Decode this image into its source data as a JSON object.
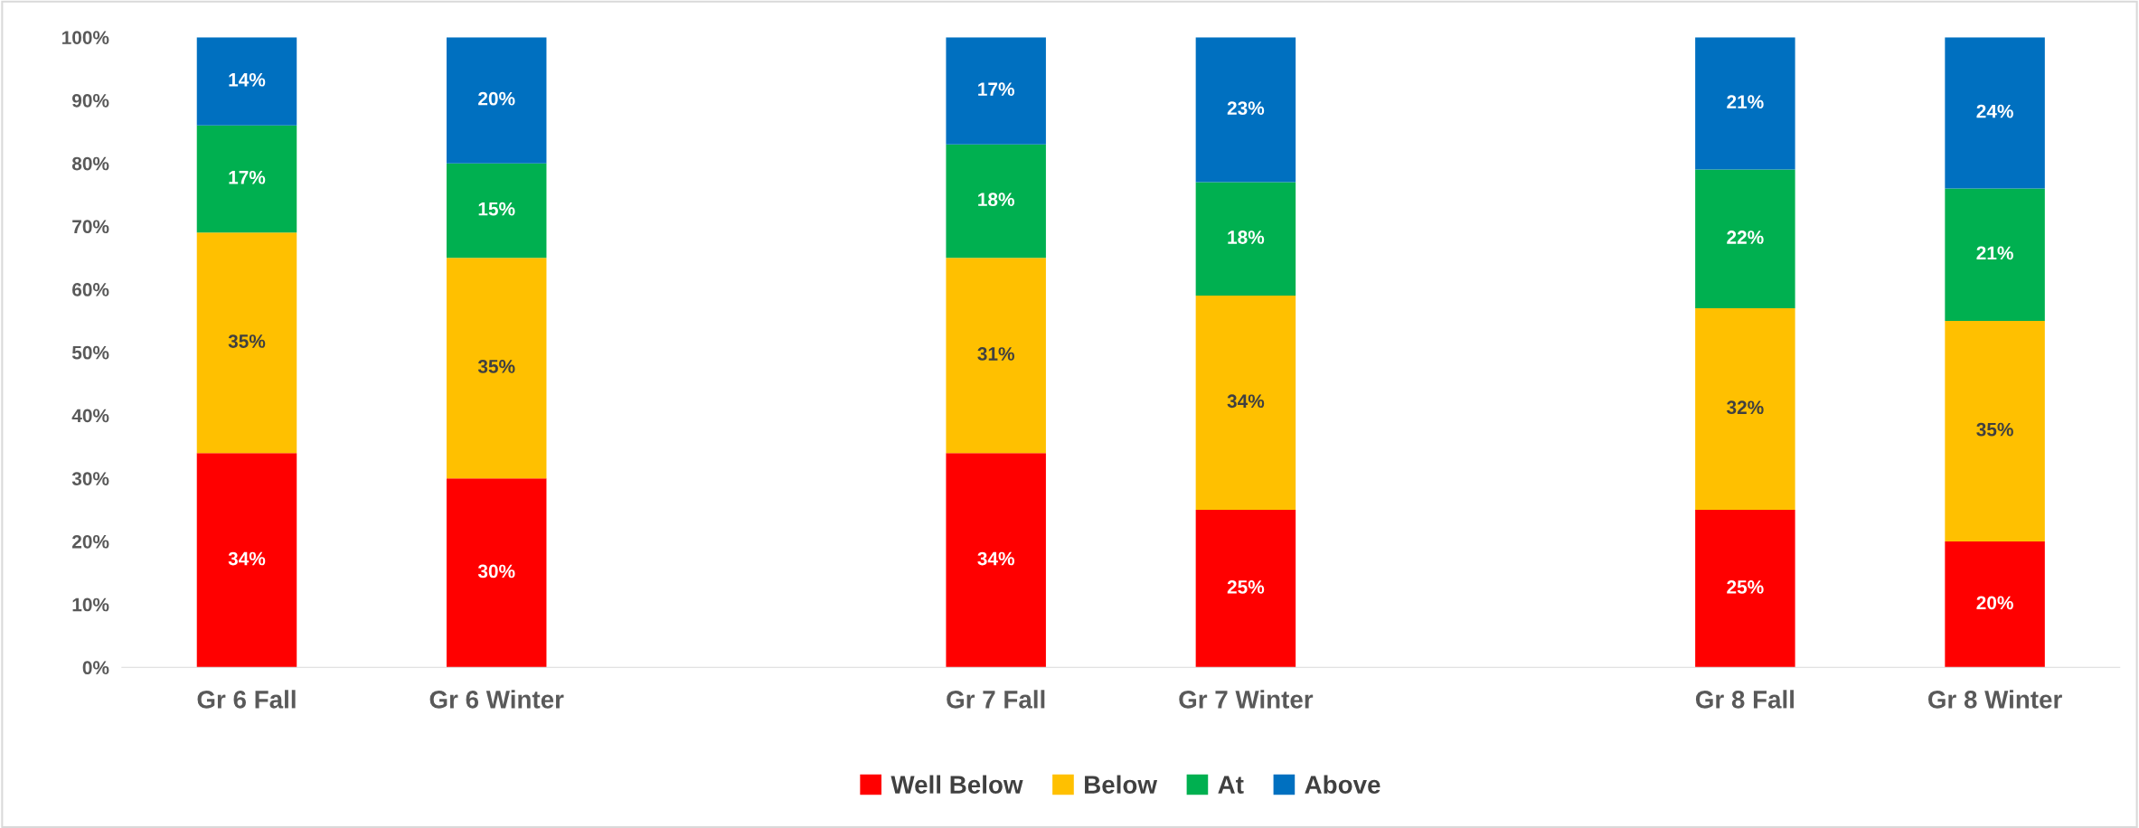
{
  "chart_data": {
    "type": "bar",
    "stacked": true,
    "categories": [
      "Gr 6 Fall",
      "Gr 6 Winter",
      null,
      "Gr 7 Fall",
      "Gr 7 Winter",
      null,
      "Gr 8 Fall",
      "Gr 8 Winter"
    ],
    "series": [
      {
        "name": "Well Below",
        "color": "#ff0000",
        "values": [
          34,
          30,
          null,
          34,
          25,
          null,
          25,
          20
        ],
        "value_labels": [
          "34%",
          "30%",
          null,
          "34%",
          "25%",
          null,
          "25%",
          "20%"
        ]
      },
      {
        "name": "Below",
        "color": "#ffc000",
        "values": [
          35,
          35,
          null,
          31,
          34,
          null,
          32,
          35
        ],
        "value_labels": [
          "35%",
          "35%",
          null,
          "31%",
          "34%",
          null,
          "32%",
          "35%"
        ]
      },
      {
        "name": "At",
        "color": "#00b050",
        "values": [
          17,
          15,
          null,
          18,
          18,
          null,
          22,
          21
        ],
        "value_labels": [
          "17%",
          "15%",
          null,
          "18%",
          "18%",
          null,
          "22%",
          "21%"
        ]
      },
      {
        "name": "Above",
        "color": "#0070c0",
        "values": [
          14,
          20,
          null,
          17,
          23,
          null,
          21,
          24
        ],
        "value_labels": [
          "14%",
          "20%",
          null,
          "17%",
          "23%",
          null,
          "21%",
          "24%"
        ]
      }
    ],
    "ylim": [
      0,
      100
    ],
    "yticks": [
      {
        "value": 0,
        "label": "0%"
      },
      {
        "value": 10,
        "label": "10%"
      },
      {
        "value": 20,
        "label": "20%"
      },
      {
        "value": 30,
        "label": "30%"
      },
      {
        "value": 40,
        "label": "40%"
      },
      {
        "value": 50,
        "label": "50%"
      },
      {
        "value": 60,
        "label": "60%"
      },
      {
        "value": 70,
        "label": "70%"
      },
      {
        "value": 80,
        "label": "80%"
      },
      {
        "value": 90,
        "label": "90%"
      },
      {
        "value": 100,
        "label": "100%"
      }
    ],
    "grid": false,
    "legend": "bottom"
  }
}
